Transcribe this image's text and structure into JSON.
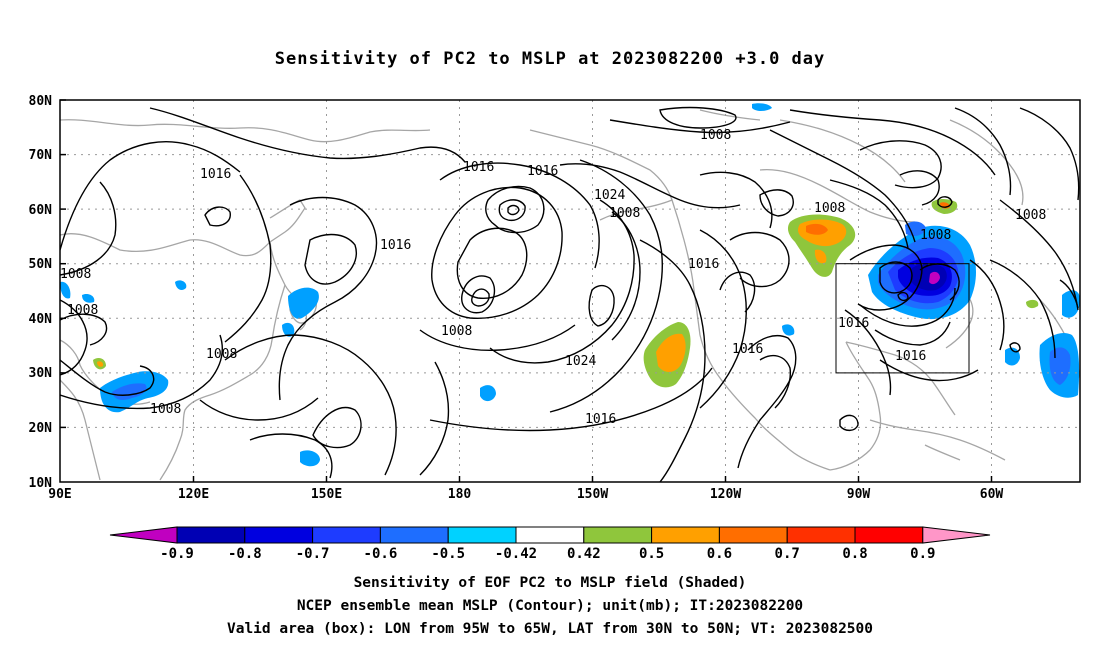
{
  "title": "Sensitivity of PC2 to MSLP at 2023082200 +3.0 day",
  "map": {
    "lat_ticks": [
      "80N",
      "70N",
      "60N",
      "50N",
      "40N",
      "30N",
      "20N",
      "10N"
    ],
    "lon_ticks": [
      "90E",
      "120E",
      "150E",
      "180",
      "150W",
      "120W",
      "90W",
      "60W"
    ],
    "valid_box": {
      "lon_from": "95W",
      "lon_to": "65W",
      "lat_from": "30N",
      "lat_to": "50N"
    },
    "contour_labels": [
      "1016",
      "1008",
      "1008",
      "1008",
      "1008",
      "1016",
      "1008",
      "1016",
      "1016",
      "1024",
      "1008",
      "1024",
      "1016",
      "1016",
      "1008",
      "1016",
      "1008",
      "1008",
      "1016",
      "1016"
    ],
    "colors": {
      "land_outline": "#a6a6a6",
      "contour": "#000000",
      "grid": "#999999"
    }
  },
  "colorbar": {
    "labels": [
      "-0.9",
      "-0.8",
      "-0.7",
      "-0.6",
      "-0.5",
      "-0.42",
      "0.42",
      "0.5",
      "0.6",
      "0.7",
      "0.8",
      "0.9"
    ],
    "colors": [
      "#c000c0",
      "#0000b4",
      "#0000e0",
      "#1e3cff",
      "#1e6eff",
      "#00a0ff",
      "#00d2ff",
      "#ffffff",
      "#8fc63c",
      "#ffa000",
      "#ff6e00",
      "#ff3000",
      "#ff0000",
      "#ff96c8"
    ]
  },
  "caption": {
    "line1": "Sensitivity of EOF PC2 to MSLP field (Shaded)",
    "line2": "NCEP ensemble mean MSLP (Contour); unit(mb); IT:2023082200",
    "line3": "Valid area (box): LON from 95W to 65W, LAT from 30N to 50N; VT: 2023082500"
  }
}
